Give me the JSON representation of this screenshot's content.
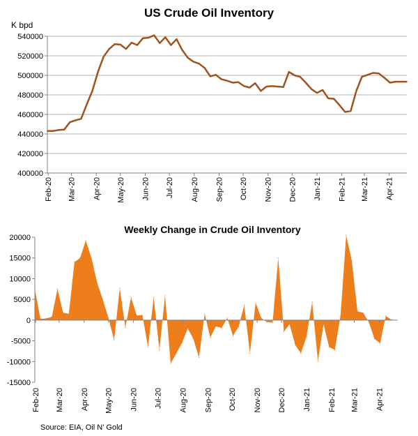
{
  "source": "Source: EIA, Oil N' Gold",
  "colors": {
    "line": "#A0521D",
    "area": "#EE7D1B",
    "axis": "#808080",
    "grid": "#B0B0B0"
  },
  "chart_data": [
    {
      "type": "line",
      "title": "US Crude Oil Inventory",
      "ylabel": "K bpd",
      "ylim": [
        400000,
        540000
      ],
      "yticks": [
        400000,
        420000,
        440000,
        460000,
        480000,
        500000,
        520000,
        540000
      ],
      "ytick_labels": [
        "400000",
        "420000",
        "440000",
        "460000",
        "480000",
        "500000",
        "520000",
        "540000"
      ],
      "xticks": [
        "Feb-20",
        "Mar-20",
        "Apr-20",
        "May-20",
        "Jun-20",
        "Jul-20",
        "Aug-20",
        "Sep-20",
        "Oct-20",
        "Nov-20",
        "Dec-20",
        "Jan-21",
        "Feb-21",
        "Mar-21",
        "Apr-21"
      ],
      "grid": "horizontal",
      "series": [
        {
          "x": [
            "2020-01-31",
            "2020-02-07",
            "2020-02-14",
            "2020-02-21",
            "2020-02-28",
            "2020-03-06",
            "2020-03-13",
            "2020-03-20",
            "2020-03-27",
            "2020-04-03",
            "2020-04-10",
            "2020-04-17",
            "2020-04-24",
            "2020-05-01",
            "2020-05-08",
            "2020-05-15",
            "2020-05-22",
            "2020-05-29",
            "2020-06-05",
            "2020-06-12",
            "2020-06-19",
            "2020-06-26",
            "2020-07-03",
            "2020-07-10",
            "2020-07-17",
            "2020-07-24",
            "2020-07-31",
            "2020-08-07",
            "2020-08-14",
            "2020-08-21",
            "2020-08-28",
            "2020-09-04",
            "2020-09-11",
            "2020-09-18",
            "2020-09-25",
            "2020-10-02",
            "2020-10-09",
            "2020-10-16",
            "2020-10-23",
            "2020-10-30",
            "2020-11-06",
            "2020-11-13",
            "2020-11-20",
            "2020-11-27",
            "2020-12-04",
            "2020-12-11",
            "2020-12-18",
            "2020-12-25",
            "2021-01-01",
            "2021-01-08",
            "2021-01-15",
            "2021-01-22",
            "2021-01-29",
            "2021-02-05",
            "2021-02-12",
            "2021-02-19",
            "2021-02-26",
            "2021-03-05",
            "2021-03-12",
            "2021-03-19",
            "2021-03-26",
            "2021-04-02",
            "2021-04-09",
            "2021-04-16",
            "2021-04-23"
          ],
          "values": [
            443000,
            443000,
            444000,
            444500,
            452000,
            454000,
            455500,
            470000,
            484000,
            503500,
            519000,
            527000,
            532000,
            531500,
            527000,
            533500,
            531000,
            538000,
            538500,
            541000,
            533000,
            539000,
            531000,
            537000,
            526000,
            518000,
            514000,
            512000,
            507500,
            499000,
            500500,
            496000,
            494500,
            492500,
            493000,
            489000,
            487500,
            492000,
            484000,
            488500,
            489000,
            488500,
            488000,
            503500,
            500000,
            498500,
            492500,
            486000,
            482000,
            485000,
            476500,
            476000,
            469500,
            462500,
            463500,
            484000,
            498500,
            500500,
            502500,
            502000,
            497500,
            492500,
            493500,
            493500,
            493500
          ]
        }
      ]
    },
    {
      "type": "area",
      "title": "Weekly Change in Crude Oil Inventory",
      "ylim": [
        -15000,
        20000
      ],
      "yticks": [
        -15000,
        -10000,
        -5000,
        0,
        5000,
        10000,
        15000,
        20000
      ],
      "ytick_labels": [
        "-15000",
        "-10000",
        "-5000",
        "0",
        "5000",
        "10000",
        "15000",
        "20000"
      ],
      "xticks": [
        "Feb-20",
        "Mar-20",
        "Apr-20",
        "May-20",
        "Jun-20",
        "Jul-20",
        "Aug-20",
        "Sep-20",
        "Oct-20",
        "Nov-20",
        "Dec-20",
        "Jan-21",
        "Feb-21",
        "Mar-21",
        "Apr-21"
      ],
      "grid": "none",
      "series": [
        {
          "x": [
            "2020-01-31",
            "2020-02-07",
            "2020-02-14",
            "2020-02-21",
            "2020-02-28",
            "2020-03-06",
            "2020-03-13",
            "2020-03-20",
            "2020-03-27",
            "2020-04-03",
            "2020-04-10",
            "2020-04-17",
            "2020-04-24",
            "2020-05-01",
            "2020-05-08",
            "2020-05-15",
            "2020-05-22",
            "2020-05-29",
            "2020-06-05",
            "2020-06-12",
            "2020-06-19",
            "2020-06-26",
            "2020-07-03",
            "2020-07-10",
            "2020-07-17",
            "2020-07-24",
            "2020-07-31",
            "2020-08-07",
            "2020-08-14",
            "2020-08-21",
            "2020-08-28",
            "2020-09-04",
            "2020-09-11",
            "2020-09-18",
            "2020-09-25",
            "2020-10-02",
            "2020-10-09",
            "2020-10-16",
            "2020-10-23",
            "2020-10-30",
            "2020-11-06",
            "2020-11-13",
            "2020-11-20",
            "2020-11-27",
            "2020-12-04",
            "2020-12-11",
            "2020-12-18",
            "2020-12-25",
            "2021-01-01",
            "2021-01-08",
            "2021-01-15",
            "2021-01-22",
            "2021-01-29",
            "2021-02-05",
            "2021-02-12",
            "2021-02-19",
            "2021-02-26",
            "2021-03-05",
            "2021-03-12",
            "2021-03-19",
            "2021-03-26",
            "2021-04-02",
            "2021-04-09",
            "2021-04-16",
            "2021-04-23"
          ],
          "values": [
            7500,
            300,
            400,
            800,
            7500,
            1800,
            1500,
            14000,
            15000,
            19200,
            15000,
            9000,
            5000,
            500,
            -4800,
            7700,
            -1800,
            5500,
            1100,
            1200,
            -6500,
            5500,
            -7200,
            5900,
            -10500,
            -8000,
            -5500,
            -2000,
            -4500,
            -9000,
            1500,
            -4200,
            -1500,
            -1900,
            500,
            -3800,
            -1600,
            3600,
            -8000,
            4200,
            500,
            -500,
            -600,
            15000,
            -2800,
            -1000,
            -6000,
            -8000,
            -4000,
            4400,
            -9900,
            -1000,
            -6500,
            -7200,
            1000,
            20500,
            14300,
            2100,
            1800,
            -500,
            -4500,
            -5600,
            1000,
            100,
            0
          ]
        }
      ]
    }
  ]
}
